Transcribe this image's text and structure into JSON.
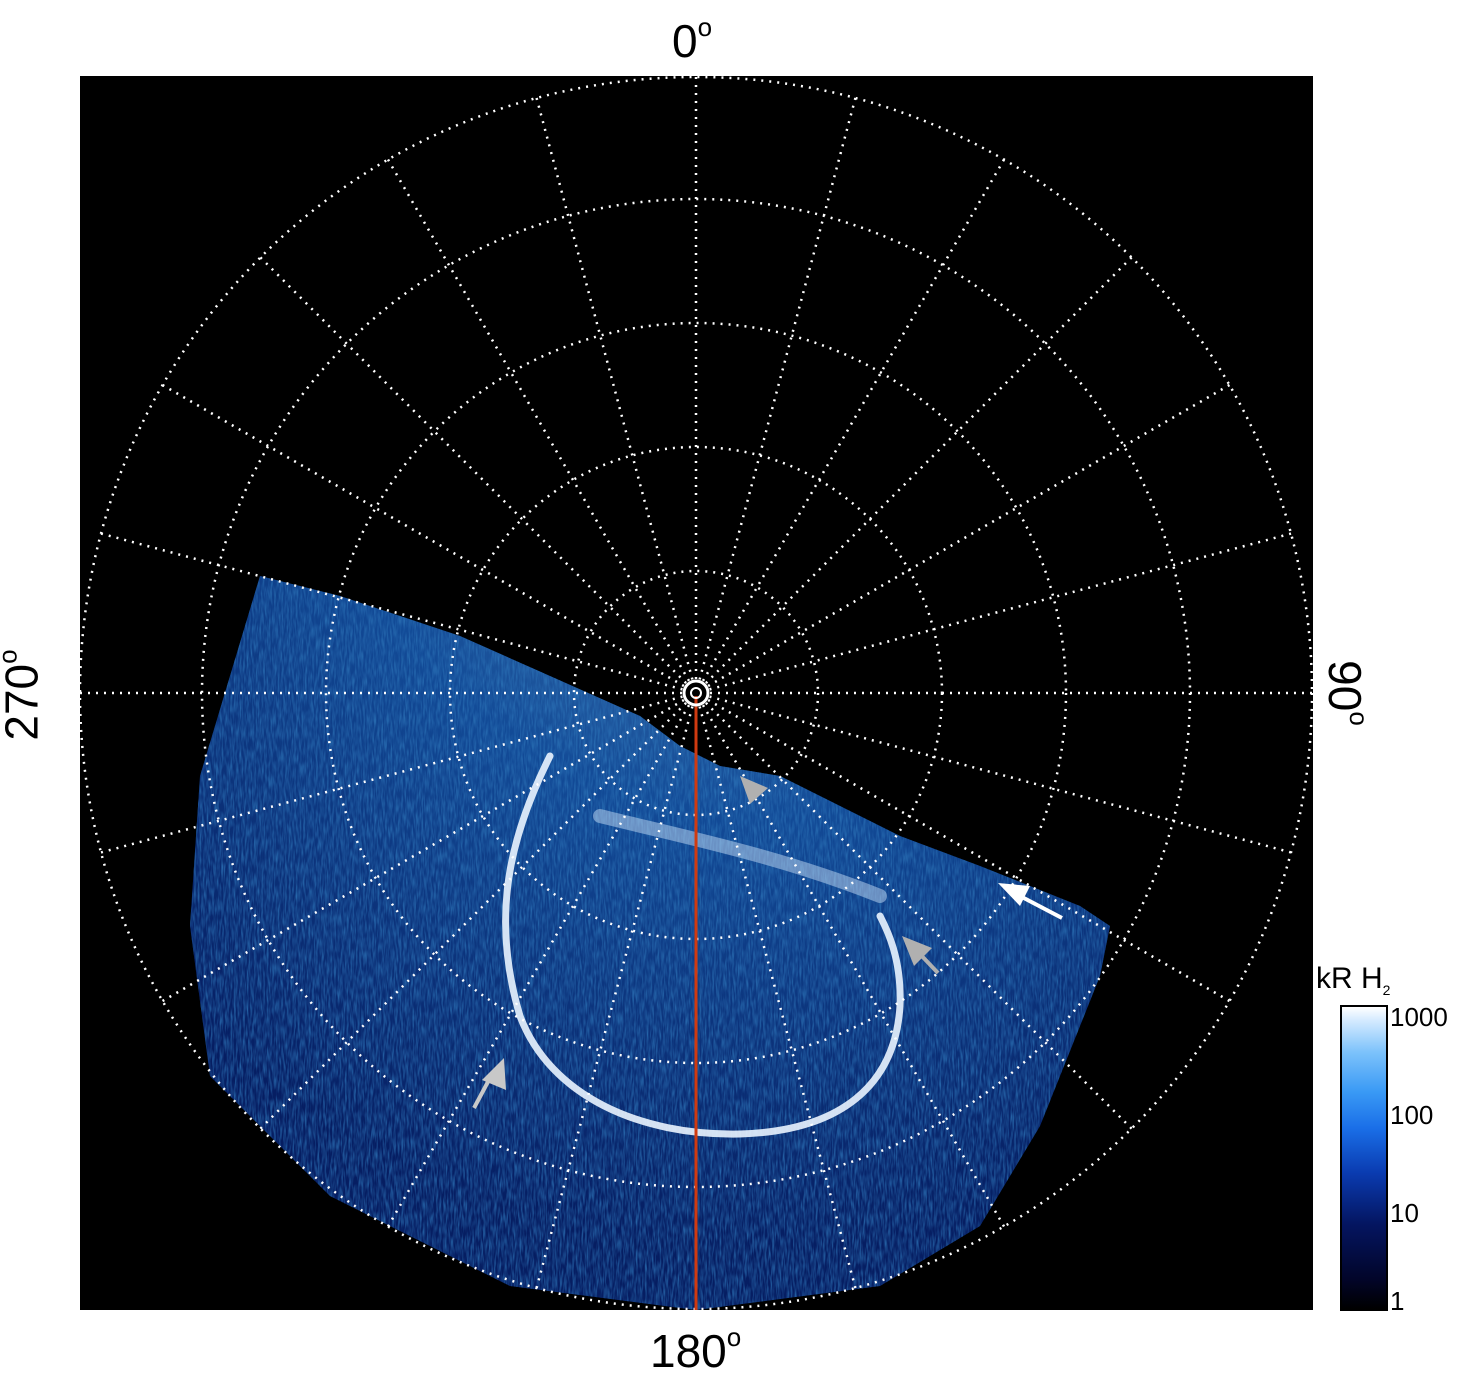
{
  "labels": {
    "top": "0",
    "bottom": "180",
    "left": "270",
    "right": "90",
    "degree_symbol": "o"
  },
  "colorbar": {
    "title": "kR H",
    "title_sub": "2",
    "ticks": [
      "1000",
      "100",
      "10",
      "1"
    ],
    "scale": "log"
  },
  "colors": {
    "background": "#000000",
    "grid": "#ffffff",
    "meridian_line": "#d03a10",
    "aurora_main": "#1e7ae8",
    "aurora_bright": "#e8f4ff",
    "arrow_white": "#ffffff",
    "arrow_grey": "#b0b0b0"
  }
}
